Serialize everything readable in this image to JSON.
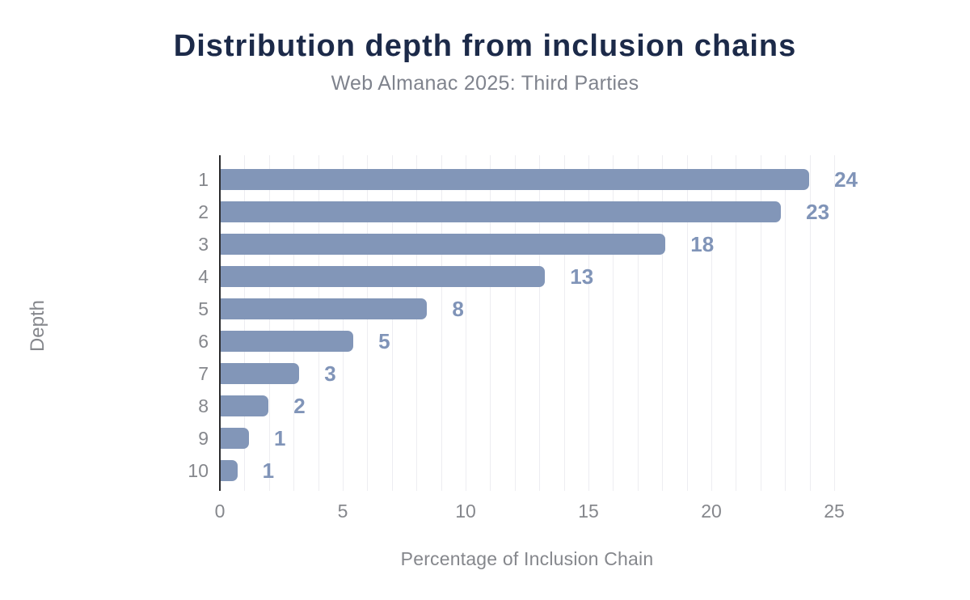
{
  "header": {
    "title": "Distribution depth from inclusion chains",
    "subtitle": "Web Almanac 2025: Third Parties"
  },
  "chart_data": {
    "type": "bar",
    "orientation": "horizontal",
    "title": "Distribution depth from inclusion chains",
    "subtitle": "Web Almanac 2025: Third Parties",
    "xlabel": "Percentage of Inclusion Chain",
    "ylabel": "Depth",
    "categories": [
      "1",
      "2",
      "3",
      "4",
      "5",
      "6",
      "7",
      "8",
      "9",
      "10"
    ],
    "labels": [
      "24",
      "23",
      "18",
      "13",
      "8",
      "5",
      "3",
      "2",
      "1",
      "1"
    ],
    "values": [
      23.95,
      22.8,
      18.1,
      13.2,
      8.4,
      5.4,
      3.2,
      1.95,
      1.15,
      0.68
    ],
    "xlim": [
      0,
      25
    ],
    "x_ticks": [
      0,
      5,
      10,
      15,
      20,
      25
    ],
    "grid": "vertical gridlines every 1 unit",
    "legend": "none",
    "colors": {
      "bar": "#8296b8",
      "data_label": "#8094b8",
      "title": "#1c2a49",
      "subtitle": "#7f838d",
      "axis_text": "#85878c",
      "axis_line": "#2a2a2c",
      "gridline": "#ededf1",
      "background": "#ffffff"
    }
  }
}
